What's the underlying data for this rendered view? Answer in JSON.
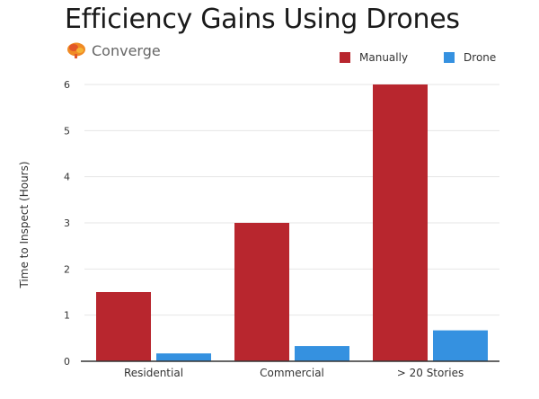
{
  "header": {
    "title": "Efficiency Gains Using Drones",
    "brand": "Converge",
    "brand_icon": "brain-icon"
  },
  "colors": {
    "manually": "#b8262e",
    "drone": "#3591e0",
    "grid": "#e6e6e6",
    "axis": "#333333"
  },
  "chart_data": {
    "type": "bar",
    "title": "Efficiency Gains Using Drones",
    "xlabel": "",
    "ylabel": "Time to Inspect (Hours)",
    "ylim": [
      0,
      6
    ],
    "yticks": [
      0,
      1,
      2,
      3,
      4,
      5,
      6
    ],
    "grid": true,
    "legend_position": "top-right",
    "categories": [
      "Residential",
      "Commercial",
      "> 20 Stories"
    ],
    "series": [
      {
        "name": "Manually",
        "values": [
          1.5,
          3,
          6
        ]
      },
      {
        "name": "Drone",
        "values": [
          0.17,
          0.33,
          0.67
        ]
      }
    ]
  }
}
